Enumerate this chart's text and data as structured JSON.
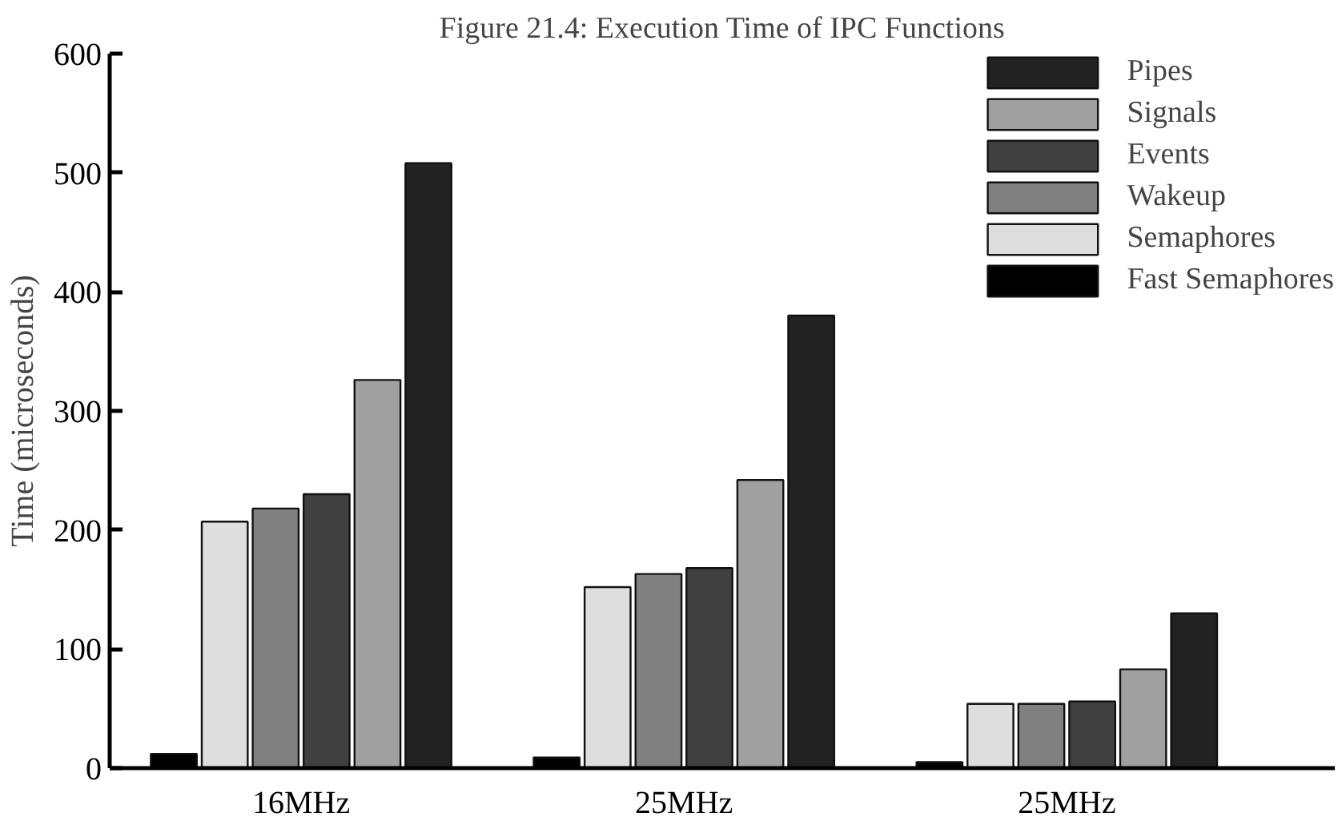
{
  "chart_data": {
    "type": "bar",
    "title": "Figure 21.4: Execution Time of IPC Functions",
    "ylabel": "Time (microseconds)",
    "categories": [
      "16MHz",
      "25MHz",
      "25MHz"
    ],
    "series": [
      {
        "name": "Fast Semaphores",
        "color": "#000000",
        "values": [
          12,
          9,
          5
        ]
      },
      {
        "name": "Semaphores",
        "color": "#dedede",
        "values": [
          207,
          152,
          54
        ]
      },
      {
        "name": "Wakeup",
        "color": "#808080",
        "values": [
          218,
          163,
          54
        ]
      },
      {
        "name": "Events",
        "color": "#404040",
        "values": [
          230,
          168,
          56
        ]
      },
      {
        "name": "Signals",
        "color": "#a0a0a0",
        "values": [
          326,
          242,
          83
        ]
      },
      {
        "name": "Pipes",
        "color": "#222222",
        "values": [
          508,
          380,
          130
        ]
      }
    ],
    "ylim": [
      0,
      600
    ],
    "yticks": [
      0,
      100,
      200,
      300,
      400,
      500,
      600
    ],
    "grid": false,
    "legend": "top right"
  }
}
